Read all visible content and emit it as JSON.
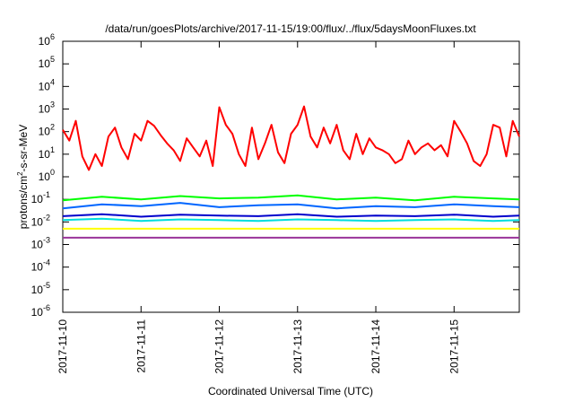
{
  "chart_data": {
    "type": "line",
    "title": "/data/run/goesPlots/archive/2017-11-15/19:00/flux/../flux/5daysMoonFluxes.txt",
    "xlabel": "Coordinated Universal Time (UTC)",
    "ylabel": {
      "base": "protons/cm",
      "sup": "2",
      "rest": "-s-sr-MeV"
    },
    "xlim": [
      "2017-11-10T00:00",
      "2017-11-15T20:00"
    ],
    "ylim": [
      1e-06,
      1000000.0
    ],
    "yscale": "log",
    "grid": false,
    "x_ticks": [
      "2017-11-10",
      "2017-11-11",
      "2017-11-12",
      "2017-11-13",
      "2017-11-14",
      "2017-11-15"
    ],
    "y_ticks": [
      {
        "value": 1e-06,
        "base": "10",
        "exp": "-6"
      },
      {
        "value": 1e-05,
        "base": "10",
        "exp": "-5"
      },
      {
        "value": 0.0001,
        "base": "10",
        "exp": "-4"
      },
      {
        "value": 0.001,
        "base": "10",
        "exp": "-3"
      },
      {
        "value": 0.01,
        "base": "10",
        "exp": "-2"
      },
      {
        "value": 0.1,
        "base": "10",
        "exp": "-1"
      },
      {
        "value": 1,
        "base": "10",
        "exp": "0"
      },
      {
        "value": 10,
        "base": "10",
        "exp": "1"
      },
      {
        "value": 100,
        "base": "10",
        "exp": "2"
      },
      {
        "value": 1000,
        "base": "10",
        "exp": "3"
      },
      {
        "value": 10000,
        "base": "10",
        "exp": "4"
      },
      {
        "value": 100000,
        "base": "10",
        "exp": "5"
      },
      {
        "value": 1000000,
        "base": "10",
        "exp": "6"
      }
    ],
    "series": [
      {
        "color": "#ff0000",
        "x": [
          "2017-11-10T00:00",
          "2017-11-10T02:00",
          "2017-11-10T04:00",
          "2017-11-10T06:00",
          "2017-11-10T08:00",
          "2017-11-10T10:00",
          "2017-11-10T12:00",
          "2017-11-10T14:00",
          "2017-11-10T16:00",
          "2017-11-10T18:00",
          "2017-11-10T20:00",
          "2017-11-10T22:00",
          "2017-11-11T00:00",
          "2017-11-11T02:00",
          "2017-11-11T04:00",
          "2017-11-11T06:00",
          "2017-11-11T08:00",
          "2017-11-11T10:00",
          "2017-11-11T12:00",
          "2017-11-11T14:00",
          "2017-11-11T16:00",
          "2017-11-11T18:00",
          "2017-11-11T20:00",
          "2017-11-11T22:00",
          "2017-11-12T00:00",
          "2017-11-12T02:00",
          "2017-11-12T04:00",
          "2017-11-12T06:00",
          "2017-11-12T08:00",
          "2017-11-12T10:00",
          "2017-11-12T12:00",
          "2017-11-12T14:00",
          "2017-11-12T16:00",
          "2017-11-12T18:00",
          "2017-11-12T20:00",
          "2017-11-12T22:00",
          "2017-11-13T00:00",
          "2017-11-13T02:00",
          "2017-11-13T04:00",
          "2017-11-13T06:00",
          "2017-11-13T08:00",
          "2017-11-13T10:00",
          "2017-11-13T12:00",
          "2017-11-13T14:00",
          "2017-11-13T16:00",
          "2017-11-13T18:00",
          "2017-11-13T20:00",
          "2017-11-13T22:00",
          "2017-11-14T00:00",
          "2017-11-14T02:00",
          "2017-11-14T04:00",
          "2017-11-14T06:00",
          "2017-11-14T08:00",
          "2017-11-14T10:00",
          "2017-11-14T12:00",
          "2017-11-14T14:00",
          "2017-11-14T16:00",
          "2017-11-14T18:00",
          "2017-11-14T20:00",
          "2017-11-14T22:00",
          "2017-11-15T00:00",
          "2017-11-15T02:00",
          "2017-11-15T04:00",
          "2017-11-15T06:00",
          "2017-11-15T08:00",
          "2017-11-15T10:00",
          "2017-11-15T12:00",
          "2017-11-15T14:00",
          "2017-11-15T16:00",
          "2017-11-15T18:00",
          "2017-11-15T20:00"
        ],
        "values": [
          120,
          40,
          300,
          8,
          2,
          10,
          3,
          60,
          150,
          20,
          6,
          80,
          40,
          300,
          180,
          70,
          30,
          15,
          5,
          50,
          20,
          8,
          40,
          3,
          1200,
          200,
          80,
          10,
          3,
          150,
          6,
          30,
          200,
          12,
          4,
          80,
          200,
          1300,
          60,
          20,
          150,
          30,
          200,
          15,
          6,
          80,
          10,
          50,
          20,
          15,
          10,
          4,
          6,
          40,
          10,
          20,
          30,
          15,
          25,
          8,
          300,
          100,
          30,
          5,
          3,
          10,
          200,
          150,
          8,
          300,
          60
        ]
      },
      {
        "color": "#00ff00",
        "x": [
          "2017-11-10T00:00",
          "2017-11-10T12:00",
          "2017-11-11T00:00",
          "2017-11-11T12:00",
          "2017-11-12T00:00",
          "2017-11-12T12:00",
          "2017-11-13T00:00",
          "2017-11-13T12:00",
          "2017-11-14T00:00",
          "2017-11-14T12:00",
          "2017-11-15T00:00",
          "2017-11-15T12:00",
          "2017-11-15T20:00"
        ],
        "values": [
          0.09,
          0.13,
          0.1,
          0.14,
          0.11,
          0.12,
          0.15,
          0.1,
          0.12,
          0.09,
          0.13,
          0.11,
          0.1
        ]
      },
      {
        "color": "#0066ff",
        "x": [
          "2017-11-10T00:00",
          "2017-11-10T12:00",
          "2017-11-11T00:00",
          "2017-11-11T12:00",
          "2017-11-12T00:00",
          "2017-11-12T12:00",
          "2017-11-13T00:00",
          "2017-11-13T12:00",
          "2017-11-14T00:00",
          "2017-11-14T12:00",
          "2017-11-15T00:00",
          "2017-11-15T12:00",
          "2017-11-15T20:00"
        ],
        "values": [
          0.04,
          0.06,
          0.05,
          0.07,
          0.045,
          0.055,
          0.06,
          0.04,
          0.05,
          0.045,
          0.06,
          0.05,
          0.045
        ]
      },
      {
        "color": "#00dddd",
        "x": [
          "2017-11-10T00:00",
          "2017-11-10T12:00",
          "2017-11-11T00:00",
          "2017-11-11T12:00",
          "2017-11-12T00:00",
          "2017-11-12T12:00",
          "2017-11-13T00:00",
          "2017-11-13T12:00",
          "2017-11-14T00:00",
          "2017-11-14T12:00",
          "2017-11-15T00:00",
          "2017-11-15T12:00",
          "2017-11-15T20:00"
        ],
        "values": [
          0.012,
          0.014,
          0.011,
          0.013,
          0.012,
          0.011,
          0.013,
          0.012,
          0.011,
          0.012,
          0.013,
          0.011,
          0.012
        ]
      },
      {
        "color": "#0000cc",
        "x": [
          "2017-11-10T00:00",
          "2017-11-10T12:00",
          "2017-11-11T00:00",
          "2017-11-11T12:00",
          "2017-11-12T00:00",
          "2017-11-12T12:00",
          "2017-11-13T00:00",
          "2017-11-13T12:00",
          "2017-11-14T00:00",
          "2017-11-14T12:00",
          "2017-11-15T00:00",
          "2017-11-15T12:00",
          "2017-11-15T20:00"
        ],
        "values": [
          0.018,
          0.022,
          0.017,
          0.021,
          0.019,
          0.018,
          0.022,
          0.017,
          0.019,
          0.018,
          0.021,
          0.017,
          0.019
        ]
      },
      {
        "color": "#ffff00",
        "x": [
          "2017-11-10T00:00",
          "2017-11-10T12:00",
          "2017-11-11T00:00",
          "2017-11-11T12:00",
          "2017-11-12T00:00",
          "2017-11-12T12:00",
          "2017-11-13T00:00",
          "2017-11-13T12:00",
          "2017-11-14T00:00",
          "2017-11-14T12:00",
          "2017-11-15T00:00",
          "2017-11-15T12:00",
          "2017-11-15T20:00"
        ],
        "values": [
          0.005,
          0.005,
          0.005,
          0.005,
          0.005,
          0.005,
          0.005,
          0.005,
          0.005,
          0.005,
          0.005,
          0.005,
          0.005
        ]
      },
      {
        "color": "#993399",
        "x": [
          "2017-11-10T00:00",
          "2017-11-10T12:00",
          "2017-11-11T00:00",
          "2017-11-11T12:00",
          "2017-11-12T00:00",
          "2017-11-12T12:00",
          "2017-11-13T00:00",
          "2017-11-13T12:00",
          "2017-11-14T00:00",
          "2017-11-14T12:00",
          "2017-11-15T00:00",
          "2017-11-15T12:00",
          "2017-11-15T20:00"
        ],
        "values": [
          0.002,
          0.002,
          0.002,
          0.002,
          0.002,
          0.002,
          0.002,
          0.002,
          0.002,
          0.002,
          0.002,
          0.002,
          0.002
        ]
      }
    ]
  }
}
